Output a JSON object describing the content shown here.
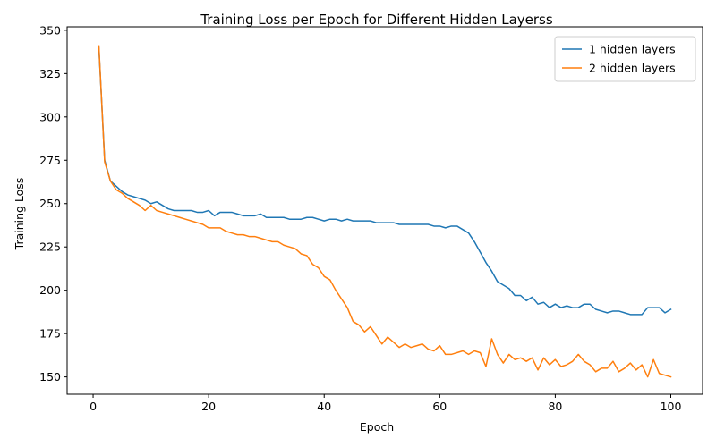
{
  "chart_data": {
    "type": "line",
    "title": "Training Loss per Epoch for Different Hidden Layerss",
    "xlabel": "Epoch",
    "ylabel": "Training Loss",
    "xlim": [
      -4.5,
      105.5
    ],
    "ylim": [
      140,
      352
    ],
    "xticks": [
      0,
      20,
      40,
      60,
      80,
      100
    ],
    "yticks": [
      150,
      175,
      200,
      225,
      250,
      275,
      300,
      325,
      350
    ],
    "grid": false,
    "legend_position": "top-right",
    "x": [
      1,
      2,
      3,
      4,
      5,
      6,
      7,
      8,
      9,
      10,
      11,
      12,
      13,
      14,
      15,
      16,
      17,
      18,
      19,
      20,
      21,
      22,
      23,
      24,
      25,
      26,
      27,
      28,
      29,
      30,
      31,
      32,
      33,
      34,
      35,
      36,
      37,
      38,
      39,
      40,
      41,
      42,
      43,
      44,
      45,
      46,
      47,
      48,
      49,
      50,
      51,
      52,
      53,
      54,
      55,
      56,
      57,
      58,
      59,
      60,
      61,
      62,
      63,
      64,
      65,
      66,
      67,
      68,
      69,
      70,
      71,
      72,
      73,
      74,
      75,
      76,
      77,
      78,
      79,
      80,
      81,
      82,
      83,
      84,
      85,
      86,
      87,
      88,
      89,
      90,
      91,
      92,
      93,
      94,
      95,
      96,
      97,
      98,
      99,
      100
    ],
    "series": [
      {
        "name": "1 hidden layers",
        "color": "#1f77b4",
        "values": [
          340,
          275,
          263,
          260,
          257,
          255,
          254,
          253,
          252,
          250,
          251,
          249,
          247,
          246,
          246,
          246,
          246,
          245,
          245,
          246,
          243,
          245,
          245,
          245,
          244,
          243,
          243,
          243,
          244,
          242,
          242,
          242,
          242,
          241,
          241,
          241,
          242,
          242,
          241,
          240,
          241,
          241,
          240,
          241,
          240,
          240,
          240,
          240,
          239,
          239,
          239,
          239,
          238,
          238,
          238,
          238,
          238,
          238,
          237,
          237,
          236,
          237,
          237,
          235,
          233,
          228,
          222,
          216,
          211,
          205,
          203,
          201,
          197,
          197,
          194,
          196,
          192,
          193,
          190,
          192,
          190,
          191,
          190,
          190,
          192,
          192,
          189,
          188,
          187,
          188,
          188,
          187,
          186,
          186,
          186,
          190,
          190,
          190,
          187,
          189
        ]
      },
      {
        "name": "2 hidden layers",
        "color": "#ff7f0e",
        "values": [
          341,
          274,
          263,
          258,
          256,
          253,
          251,
          249,
          246,
          249,
          246,
          245,
          244,
          243,
          242,
          241,
          240,
          239,
          238,
          236,
          236,
          236,
          234,
          233,
          232,
          232,
          231,
          231,
          230,
          229,
          228,
          228,
          226,
          225,
          224,
          221,
          220,
          215,
          213,
          208,
          206,
          200,
          195,
          190,
          182,
          180,
          176,
          179,
          174,
          169,
          173,
          170,
          167,
          169,
          167,
          168,
          169,
          166,
          165,
          168,
          163,
          163,
          164,
          165,
          163,
          165,
          164,
          156,
          172,
          163,
          158,
          163,
          160,
          161,
          159,
          161,
          154,
          161,
          157,
          160,
          156,
          157,
          159,
          163,
          159,
          157,
          153,
          155,
          155,
          159,
          153,
          155,
          158,
          154,
          157,
          150,
          160,
          152,
          151,
          150
        ]
      }
    ]
  }
}
